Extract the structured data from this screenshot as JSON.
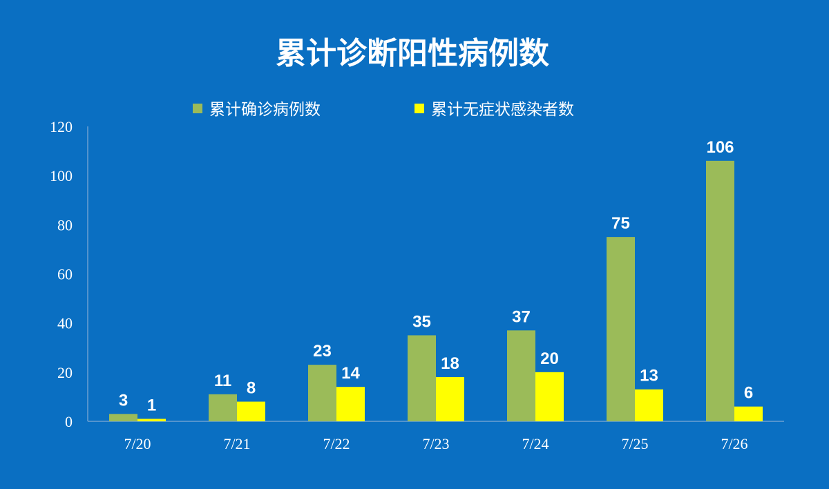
{
  "chart_data": {
    "type": "bar",
    "title": "累计诊断阳性病例数",
    "categories": [
      "7/20",
      "7/21",
      "7/22",
      "7/23",
      "7/24",
      "7/25",
      "7/26"
    ],
    "series": [
      {
        "name": "累计确诊病例数",
        "color": "#9BBB59",
        "values": [
          3,
          11,
          23,
          35,
          37,
          75,
          106
        ]
      },
      {
        "name": "累计无症状感染者数",
        "color": "#FFFF00",
        "values": [
          1,
          8,
          14,
          18,
          20,
          13,
          6
        ]
      }
    ],
    "ylim": [
      0,
      120
    ],
    "yticks": [
      0,
      20,
      40,
      60,
      80,
      100,
      120
    ],
    "grid": false,
    "legend": "top",
    "data_labels": true,
    "background": "#0A6FC2"
  }
}
